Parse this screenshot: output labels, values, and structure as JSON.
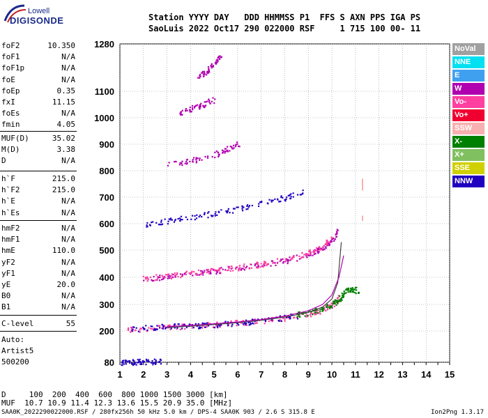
{
  "logo": {
    "line1": "Lowell",
    "line2": "DIGISONDE"
  },
  "header": {
    "row1": "Station YYYY DAY   DDD HHMMSS P1  FFS S AXN PPS IGA PS",
    "row2": "SaoLuis 2022 Oct17 290 022000 RSF     1 715 100 00- 11"
  },
  "params_group1": [
    {
      "label": "foF2",
      "value": "10.350"
    },
    {
      "label": "foF1",
      "value": "N/A"
    },
    {
      "label": "foF1p",
      "value": "N/A"
    },
    {
      "label": "foE",
      "value": "N/A"
    },
    {
      "label": "foEp",
      "value": "0.35"
    },
    {
      "label": "fxI",
      "value": "11.15"
    },
    {
      "label": "foEs",
      "value": "N/A"
    },
    {
      "label": "fmin",
      "value": "4.05"
    }
  ],
  "params_group2": [
    {
      "label": "MUF(D)",
      "value": "35.02"
    },
    {
      "label": "M(D)",
      "value": "3.38"
    },
    {
      "label": "D",
      "value": "N/A"
    }
  ],
  "params_group3": [
    {
      "label": "h`F",
      "value": "215.0"
    },
    {
      "label": "h`F2",
      "value": "215.0"
    },
    {
      "label": "h`E",
      "value": "N/A"
    },
    {
      "label": "h`Es",
      "value": "N/A"
    }
  ],
  "params_group4": [
    {
      "label": "hmF2",
      "value": "N/A"
    },
    {
      "label": "hmF1",
      "value": "N/A"
    },
    {
      "label": "hmE",
      "value": "110.0"
    },
    {
      "label": "yF2",
      "value": "N/A"
    },
    {
      "label": "yF1",
      "value": "N/A"
    },
    {
      "label": "yE",
      "value": "20.0"
    },
    {
      "label": "B0",
      "value": "N/A"
    },
    {
      "label": "B1",
      "value": "N/A"
    }
  ],
  "params_group5": [
    {
      "label": "C-level",
      "value": "55"
    }
  ],
  "auto": {
    "line1": "Auto:",
    "line2": "Artist5",
    "line3": "500200"
  },
  "footer": {
    "d_row": "D     100  200  400  600  800 1000 1500 3000 [km]",
    "muf_row": "MUF  10.7 10.9 11.4 12.3 13.6 15.5 20.9 35.0 [MHz]",
    "file_info": "SAA0K_2022290022000.RSF / 280fx256h 50 kHz 5.0 km / DPS-4 SAA0K 903 / 2.6 S 315.8 E",
    "version": "Ion2Png 1.3.17"
  },
  "legend": [
    {
      "label": "NoVal",
      "color": "#a0a0a0"
    },
    {
      "label": "NNE",
      "color": "#00e0f0"
    },
    {
      "label": "E",
      "color": "#40a0f0"
    },
    {
      "label": "W",
      "color": "#b000b0"
    },
    {
      "label": "Vo-",
      "color": "#ff40a0"
    },
    {
      "label": "Vo+",
      "color": "#f00030"
    },
    {
      "label": "SSW",
      "color": "#f8b0b0"
    },
    {
      "label": "X-",
      "color": "#008000"
    },
    {
      "label": "X+",
      "color": "#80c060"
    },
    {
      "label": "SSE",
      "color": "#d0d000"
    },
    {
      "label": "NNW",
      "color": "#2000c0"
    }
  ],
  "chart_data": {
    "type": "scatter",
    "x_ticks": [
      1,
      2,
      3,
      4,
      5,
      6,
      7,
      8,
      9,
      10,
      11,
      12,
      13,
      14,
      15
    ],
    "y_ticks": [
      80,
      200,
      300,
      400,
      500,
      600,
      700,
      800,
      900,
      1000,
      1100,
      1280
    ],
    "xlim": [
      1,
      15
    ],
    "ylim": [
      80,
      1280
    ],
    "grid": true,
    "series": [
      {
        "color": "#2000c0",
        "x": [
          1.0,
          1.4,
          1.8,
          2.2,
          2.7
        ],
        "y": [
          82,
          82,
          83,
          84,
          84
        ]
      },
      {
        "color": "#ff40a0",
        "x": [
          1.3,
          2,
          3,
          4,
          5,
          6,
          7,
          8,
          9,
          9.5,
          10,
          10.3
        ],
        "y": [
          205,
          210,
          215,
          220,
          225,
          232,
          240,
          250,
          265,
          278,
          300,
          330
        ]
      },
      {
        "color": "#2000c0",
        "x": [
          1.5,
          2.5,
          3.5,
          4.5,
          5.5,
          6.5,
          7.5,
          8.5
        ],
        "y": [
          210,
          215,
          220,
          222,
          228,
          236,
          246,
          258
        ]
      },
      {
        "color": "#008000",
        "x": [
          8.5,
          9,
          9.5,
          10,
          10.3,
          10.5,
          10.8,
          11.1
        ],
        "y": [
          262,
          270,
          285,
          300,
          320,
          345,
          360,
          350
        ]
      },
      {
        "color": "#b000b0",
        "x": [
          2,
          3,
          4,
          5,
          6,
          7,
          8,
          9,
          9.5,
          9.9,
          10.3
        ],
        "y": [
          395,
          405,
          415,
          425,
          435,
          448,
          463,
          485,
          505,
          530,
          580
        ]
      },
      {
        "color": "#ff40a0",
        "x": [
          2,
          3,
          4,
          5,
          6,
          7,
          8,
          9,
          9.5,
          10
        ],
        "y": [
          397,
          407,
          417,
          427,
          437,
          450,
          466,
          490,
          512,
          550
        ]
      },
      {
        "color": "#2000c0",
        "x": [
          2,
          3,
          4,
          5,
          6,
          7,
          8,
          9
        ],
        "y": [
          600,
          613,
          625,
          640,
          657,
          677,
          700,
          727
        ]
      },
      {
        "color": "#b000b0",
        "x": [
          3,
          4,
          5,
          5.5,
          6
        ],
        "y": [
          825,
          840,
          862,
          880,
          905
        ]
      },
      {
        "color": "#b000b0",
        "x": [
          3.5,
          4,
          4.5,
          5
        ],
        "y": [
          1020,
          1035,
          1050,
          1072
        ]
      },
      {
        "color": "#b000b0",
        "x": [
          4.3,
          4.7,
          5,
          5.3
        ],
        "y": [
          1160,
          1180,
          1210,
          1240
        ]
      }
    ],
    "curves": [
      {
        "color": "#404040",
        "x": [
          3,
          4,
          5,
          6,
          7,
          8,
          9,
          9.6,
          10,
          10.25,
          10.4
        ],
        "y": [
          213,
          218,
          224,
          231,
          240,
          252,
          270,
          290,
          320,
          380,
          530
        ]
      },
      {
        "color": "#b000b0",
        "x": [
          3,
          4,
          5,
          6,
          7,
          8,
          9,
          9.6,
          10,
          10.3,
          10.5
        ],
        "y": [
          216,
          221,
          227,
          234,
          243,
          256,
          276,
          300,
          335,
          400,
          480
        ]
      }
    ],
    "markers": [
      {
        "color": "#f8b0b0",
        "x": 11.3,
        "y": [
          725,
          770
        ]
      },
      {
        "color": "#f8b0b0",
        "x": 11.3,
        "y": [
          610,
          630
        ]
      }
    ]
  }
}
